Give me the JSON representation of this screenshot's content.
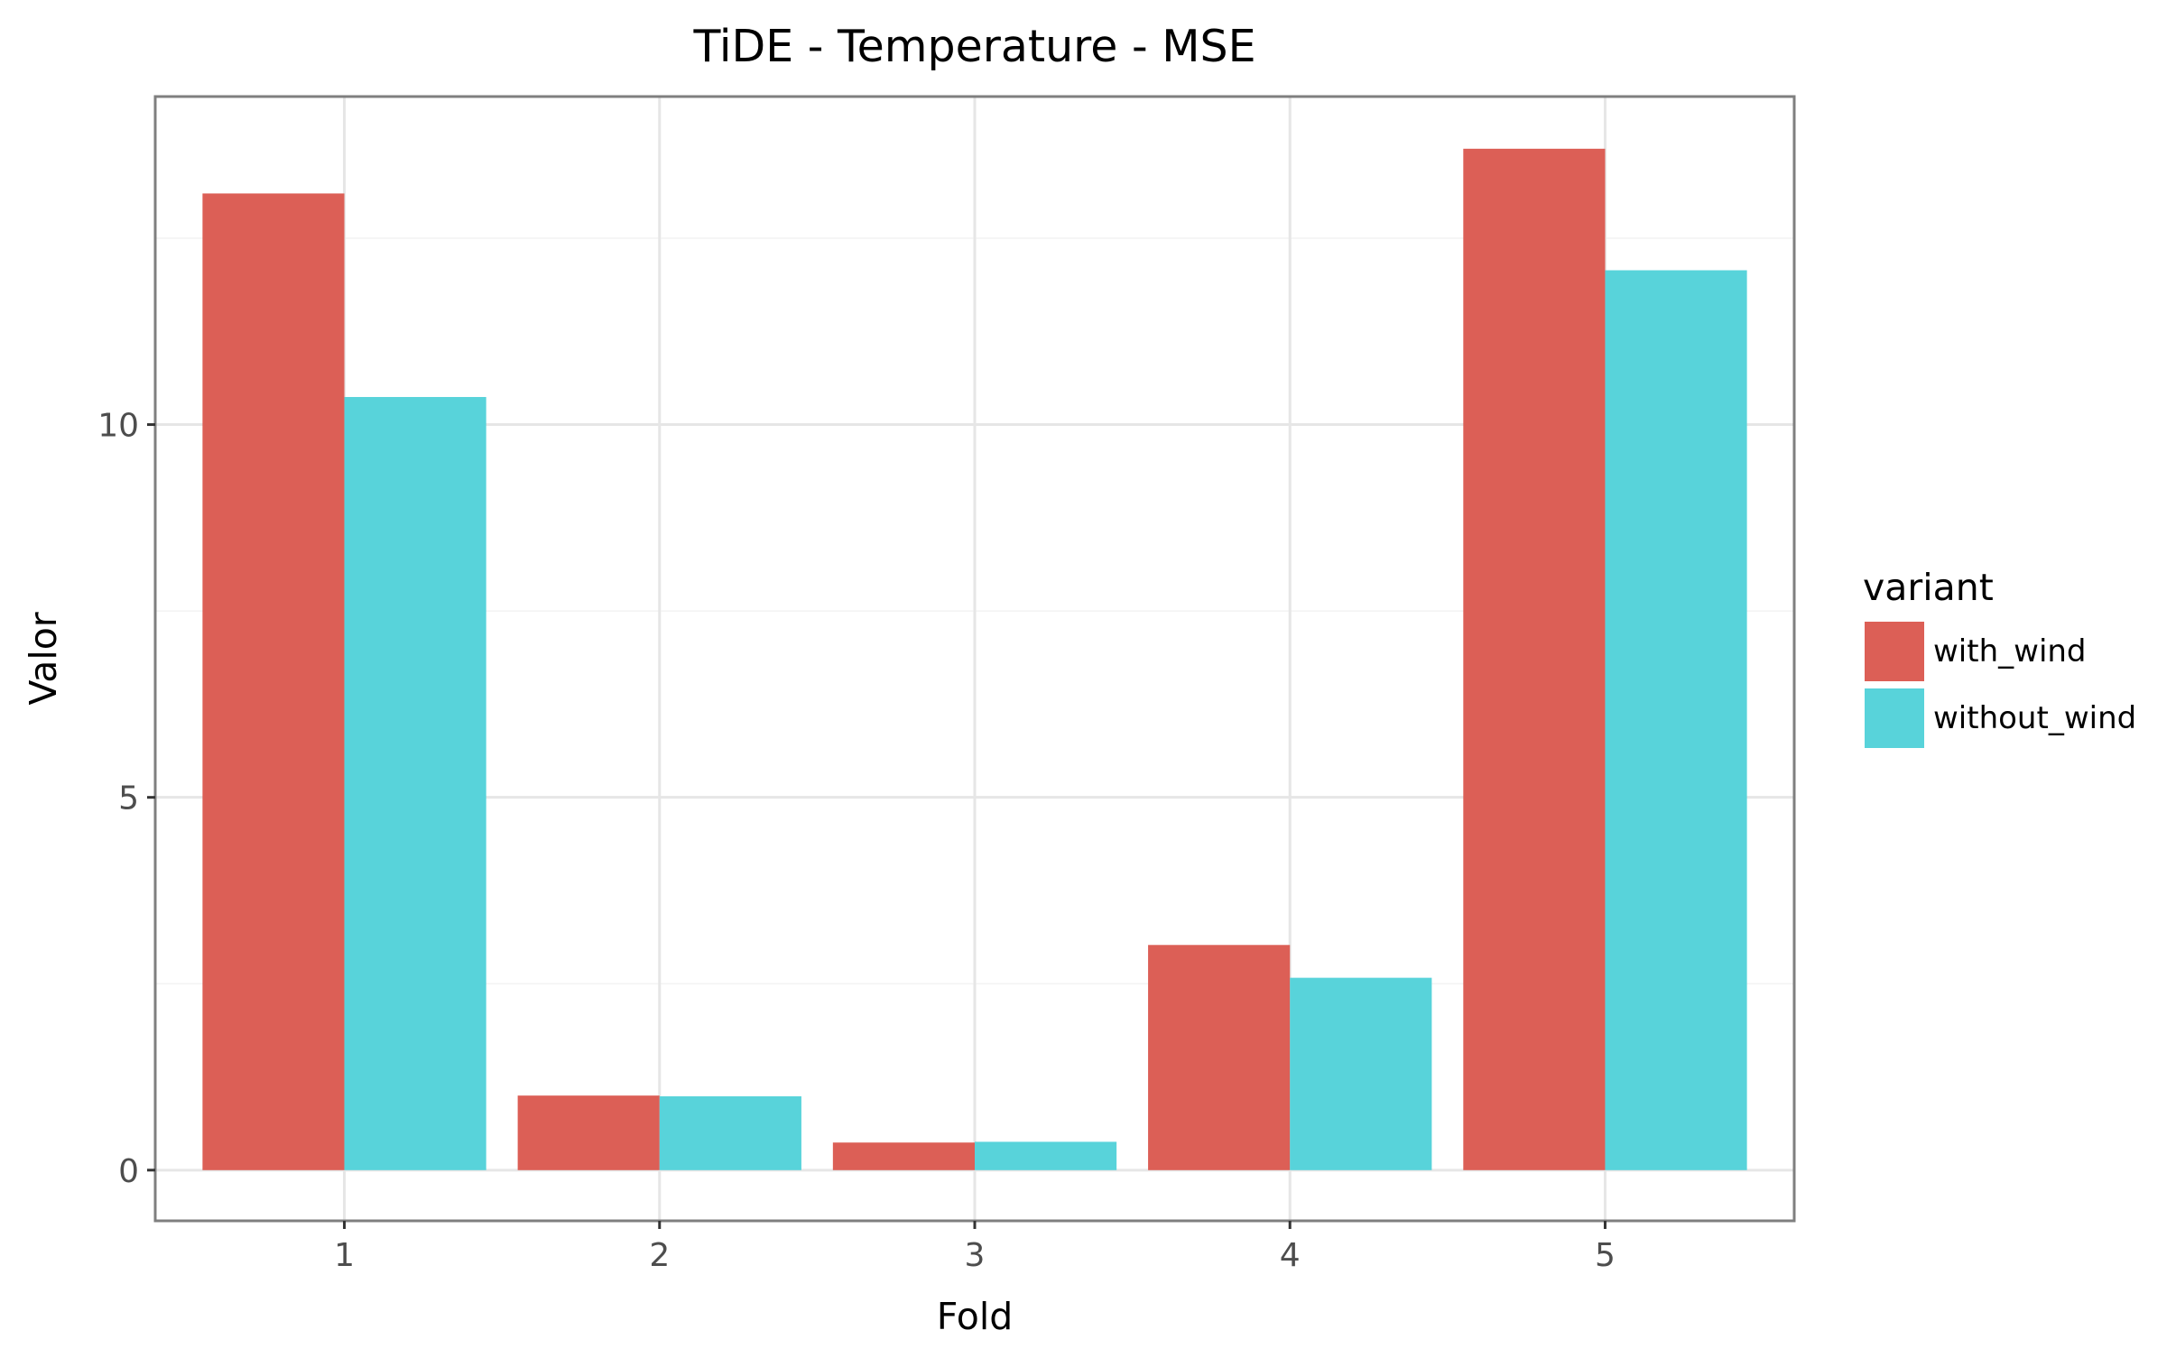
{
  "chart_data": {
    "type": "bar",
    "title": "TiDE - Temperature - MSE",
    "xlabel": "Fold",
    "ylabel": "Valor",
    "categories": [
      "1",
      "2",
      "3",
      "4",
      "5"
    ],
    "series": [
      {
        "name": "with_wind",
        "color": "#DC5F56",
        "values": [
          13.1,
          1.0,
          0.37,
          3.02,
          13.7
        ]
      },
      {
        "name": "without_wind",
        "color": "#58D3DA",
        "values": [
          10.37,
          0.99,
          0.38,
          2.58,
          12.07
        ]
      }
    ],
    "yticks": [
      0,
      5,
      10
    ],
    "ylim": [
      -0.68,
      14.4
    ],
    "legend": {
      "title": "variant",
      "position": "right"
    },
    "grid": true
  }
}
